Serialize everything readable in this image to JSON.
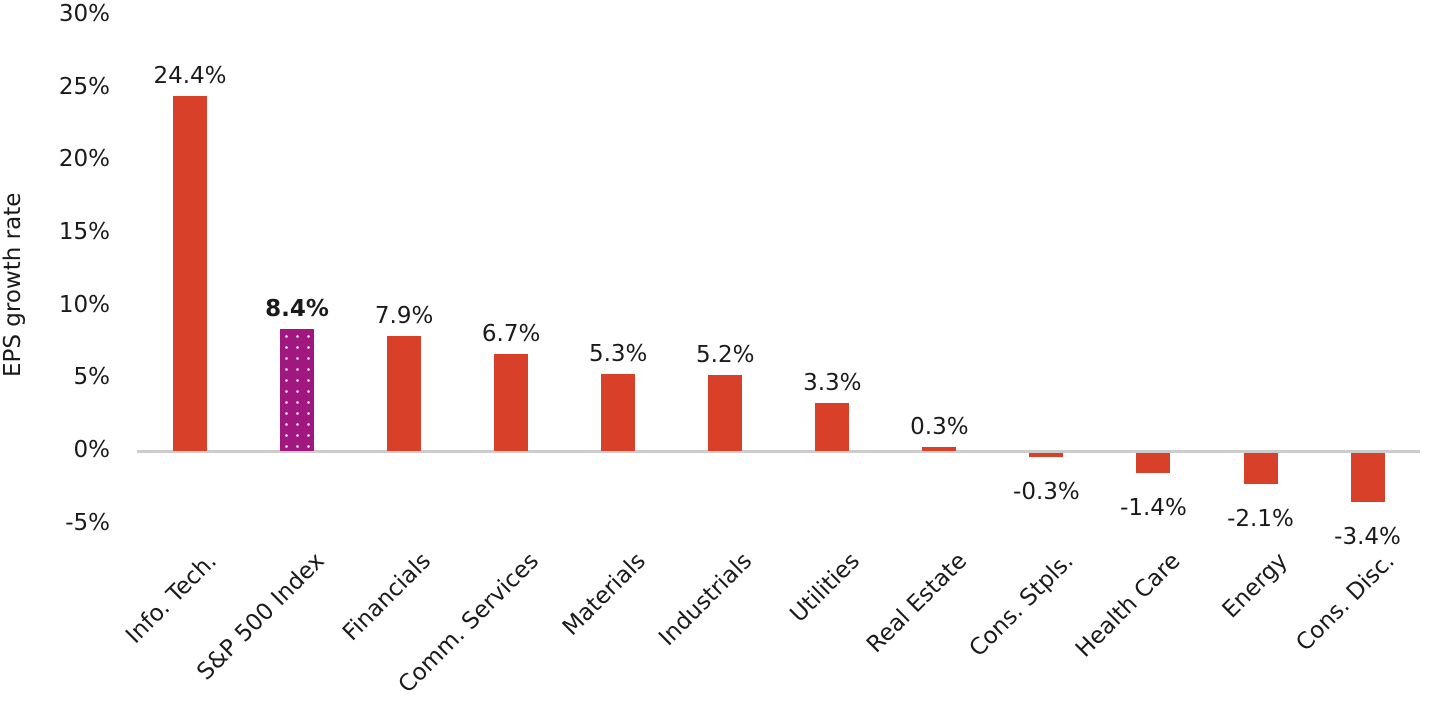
{
  "chart_data": {
    "type": "bar",
    "title": "",
    "xlabel": "",
    "ylabel": "EPS growth rate",
    "ylim": [
      -5,
      30
    ],
    "yticks": [
      "30%",
      "25%",
      "20%",
      "15%",
      "10%",
      "5%",
      "0%",
      "-5%"
    ],
    "grid": false,
    "legend": null,
    "categories": [
      "Info. Tech.",
      "S&P 500 Index",
      "Financials",
      "Comm. Services",
      "Materials",
      "Industrials",
      "Utilities",
      "Real Estate",
      "Cons. Stpls.",
      "Health Care",
      "Energy",
      "Cons. Disc."
    ],
    "values": [
      24.4,
      8.4,
      7.9,
      6.7,
      5.3,
      5.2,
      3.3,
      0.3,
      -0.3,
      -1.4,
      -2.1,
      -3.4
    ],
    "value_labels": [
      "24.4%",
      "8.4%",
      "7.9%",
      "6.7%",
      "5.3%",
      "5.2%",
      "3.3%",
      "0.3%",
      "-0.3%",
      "-1.4%",
      "-2.1%",
      "-3.4%"
    ],
    "highlight_index": 1,
    "colors": {
      "sector": "#d9402a",
      "index": "#a0177f",
      "index_pattern": "dotted-white",
      "zero_line": "#cccccc"
    }
  }
}
